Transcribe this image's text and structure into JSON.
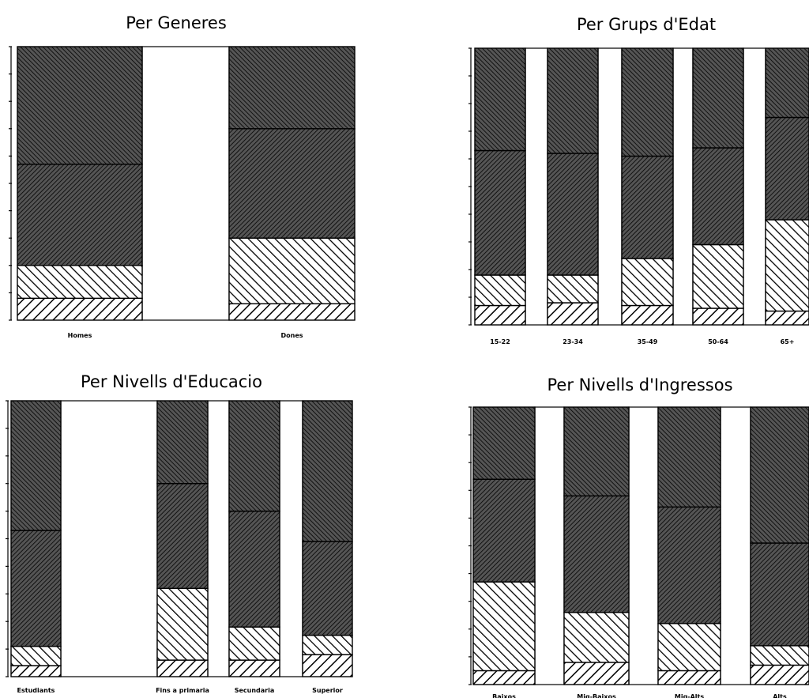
{
  "chart_data": [
    {
      "type": "bar",
      "stacked": true,
      "title": "Per Generes",
      "categories": [
        "Homes",
        "Dones"
      ],
      "ylim": [
        0,
        100
      ],
      "series": [
        {
          "values": [
            8,
            6
          ]
        },
        {
          "values": [
            12,
            24
          ]
        },
        {
          "values": [
            37,
            40
          ]
        },
        {
          "values": [
            43,
            30
          ]
        }
      ]
    },
    {
      "type": "bar",
      "stacked": true,
      "title": "Per Grups d'Edat",
      "categories": [
        "15-22",
        "23-34",
        "35-49",
        "50-64",
        "65+"
      ],
      "ylim": [
        0,
        100
      ],
      "series": [
        {
          "values": [
            7,
            8,
            7,
            6,
            5
          ]
        },
        {
          "values": [
            11,
            10,
            17,
            23,
            33
          ]
        },
        {
          "values": [
            45,
            44,
            37,
            35,
            37
          ]
        },
        {
          "values": [
            37,
            38,
            39,
            36,
            25
          ]
        }
      ]
    },
    {
      "type": "bar",
      "stacked": true,
      "title": "Per Nivells d'Educacio",
      "categories": [
        "Estudiants",
        "Fins a primaria",
        "Secundaria",
        "Superior"
      ],
      "ylim": [
        0,
        100
      ],
      "series": [
        {
          "values": [
            4,
            6,
            6,
            8
          ]
        },
        {
          "values": [
            7,
            26,
            12,
            7
          ]
        },
        {
          "values": [
            42,
            38,
            42,
            34
          ]
        },
        {
          "values": [
            47,
            30,
            40,
            51
          ]
        }
      ]
    },
    {
      "type": "bar",
      "stacked": true,
      "title": "Per Nivells d'Ingressos",
      "categories": [
        "Baixos",
        "Mig-Baixos",
        "Mig-Alts",
        "Alts"
      ],
      "ylim": [
        0,
        100
      ],
      "series": [
        {
          "values": [
            5,
            8,
            5,
            7
          ]
        },
        {
          "values": [
            32,
            18,
            17,
            7
          ]
        },
        {
          "values": [
            37,
            42,
            42,
            37
          ]
        },
        {
          "values": [
            26,
            32,
            36,
            49
          ]
        }
      ]
    }
  ],
  "colors": {
    "ink": "#000000",
    "paper": "#ffffff",
    "hatch_dark_fill": "#555555"
  }
}
